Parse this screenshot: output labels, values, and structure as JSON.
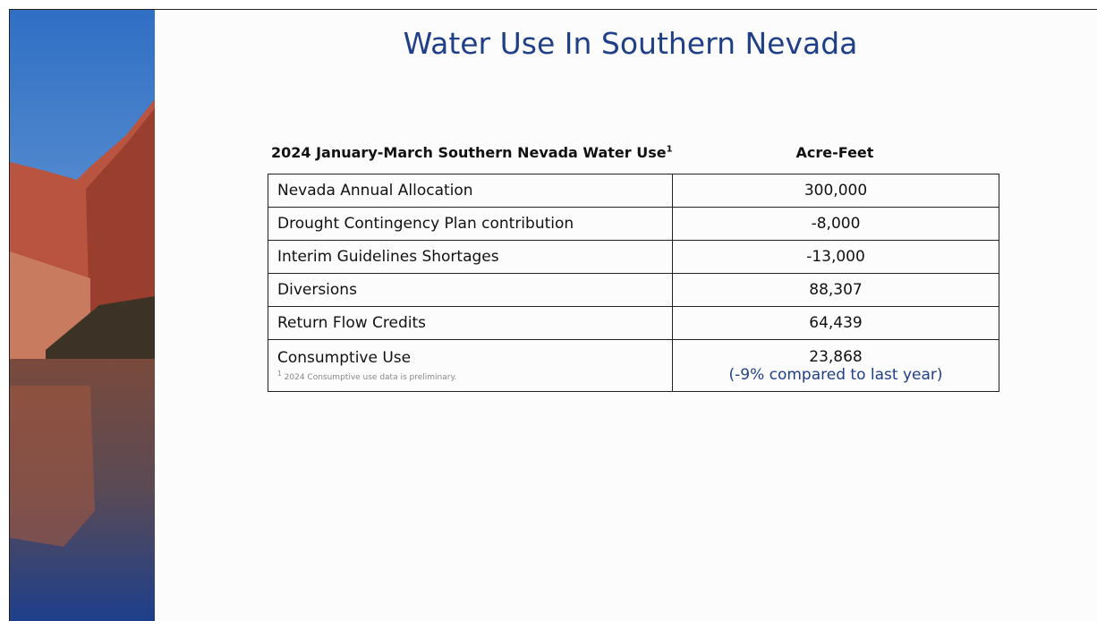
{
  "title": "Water Use In Southern Nevada",
  "table": {
    "header": {
      "label": "2024 January-March Southern Nevada Water Use",
      "label_footnote_mark": "1",
      "value": "Acre-Feet"
    },
    "rows": [
      [
        "Nevada Annual Allocation",
        "300,000"
      ],
      [
        "Drought Contingency Plan contribution",
        "-8,000"
      ],
      [
        "Interim Guidelines Shortages",
        "-13,000"
      ],
      [
        "Diversions",
        "88,307"
      ],
      [
        "Return Flow Credits",
        "64,439"
      ],
      [
        "Consumptive Use",
        "23,868"
      ]
    ],
    "last_row_note": "(-9% compared to last year)",
    "footnote": {
      "mark": "1",
      "text": "2024 Consumptive use data is preliminary."
    }
  }
}
